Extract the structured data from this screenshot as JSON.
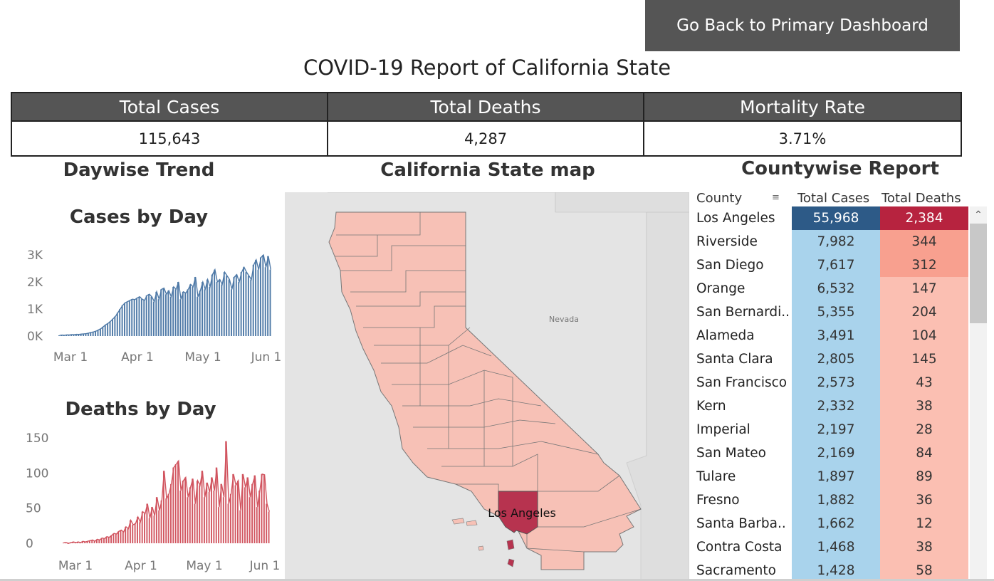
{
  "back_button": "Go Back to Primary Dashboard",
  "title": "COVID-19 Report of California State",
  "kpis": [
    {
      "label": "Total Cases",
      "value": "115,643"
    },
    {
      "label": "Total Deaths",
      "value": "4,287"
    },
    {
      "label": "Mortality Rate",
      "value": "3.71%"
    }
  ],
  "sections": {
    "trend": "Daywise Trend",
    "map": "California State map",
    "county": "Countywise Report"
  },
  "map": {
    "state_label": "Nevada",
    "highlight_label": "Los Angeles",
    "colors": {
      "county_fill": "#f7c1b6",
      "highlight": "#b7334f",
      "background": "#e8e8e8",
      "land": "#dcdcdc"
    }
  },
  "chart_data": [
    {
      "type": "bar",
      "title": "Cases by Day",
      "xlabel": "",
      "ylabel": "",
      "x_ticks": [
        "Mar 1",
        "Apr 1",
        "May 1",
        "Jun 1"
      ],
      "y_ticks": [
        "0K",
        "1K",
        "2K",
        "3K"
      ],
      "ylim": [
        0,
        3300
      ],
      "color": "#4e79a7",
      "values": [
        30,
        40,
        35,
        50,
        45,
        60,
        55,
        70,
        65,
        80,
        90,
        100,
        120,
        150,
        170,
        200,
        250,
        300,
        380,
        460,
        520,
        600,
        700,
        800,
        950,
        1100,
        1250,
        1350,
        1400,
        1450,
        1500,
        1480,
        1550,
        1600,
        1500,
        1450,
        1650,
        1700,
        1600,
        1400,
        1800,
        1500,
        1900,
        1950,
        1700,
        1850,
        1600,
        2000,
        1900,
        2200,
        1500,
        1800,
        1750,
        1900,
        2100,
        2000,
        2400,
        1600,
        1850,
        2200,
        1900,
        2300,
        2000,
        2500,
        2700,
        2200,
        2300,
        2100,
        2600,
        2450,
        2300,
        1900,
        2400,
        2500,
        2200,
        2600,
        2800,
        2600,
        2450,
        2300,
        2900,
        3100,
        2700,
        3200,
        3300,
        2800,
        3250,
        2700
      ],
      "grid": false
    },
    {
      "type": "bar",
      "title": "Deaths by Day",
      "xlabel": "",
      "ylabel": "",
      "x_ticks": [
        "Mar 1",
        "Apr 1",
        "May 1",
        "Jun 1"
      ],
      "y_ticks": [
        "0",
        "50",
        "100",
        "150"
      ],
      "ylim": [
        0,
        160
      ],
      "color": "#d1545f",
      "values": [
        1,
        1,
        0,
        1,
        2,
        1,
        2,
        1,
        3,
        2,
        3,
        4,
        5,
        3,
        6,
        5,
        8,
        7,
        10,
        9,
        12,
        15,
        14,
        18,
        20,
        17,
        25,
        22,
        35,
        28,
        30,
        40,
        32,
        48,
        45,
        60,
        38,
        55,
        42,
        70,
        50,
        65,
        110,
        68,
        75,
        90,
        115,
        120,
        125,
        80,
        95,
        100,
        70,
        85,
        98,
        60,
        95,
        88,
        110,
        70,
        92,
        78,
        100,
        80,
        115,
        55,
        90,
        70,
        155,
        60,
        75,
        105,
        88,
        95,
        50,
        105,
        85,
        100,
        70,
        90,
        103,
        55,
        80,
        105,
        104,
        60,
        48
      ],
      "grid": false
    }
  ],
  "county_table": {
    "headers": [
      "County",
      "Total Cases",
      "Total Deaths"
    ],
    "rows": [
      {
        "county": "Los Angeles",
        "cases": "55,968",
        "deaths": "2,384"
      },
      {
        "county": "Riverside",
        "cases": "7,982",
        "deaths": "344"
      },
      {
        "county": "San Diego",
        "cases": "7,617",
        "deaths": "312"
      },
      {
        "county": "Orange",
        "cases": "6,532",
        "deaths": "147"
      },
      {
        "county": "San Bernardi..",
        "cases": "5,355",
        "deaths": "204"
      },
      {
        "county": "Alameda",
        "cases": "3,491",
        "deaths": "104"
      },
      {
        "county": "Santa Clara",
        "cases": "2,805",
        "deaths": "145"
      },
      {
        "county": "San Francisco",
        "cases": "2,573",
        "deaths": "43"
      },
      {
        "county": "Kern",
        "cases": "2,332",
        "deaths": "38"
      },
      {
        "county": "Imperial",
        "cases": "2,197",
        "deaths": "28"
      },
      {
        "county": "San Mateo",
        "cases": "2,169",
        "deaths": "84"
      },
      {
        "county": "Tulare",
        "cases": "1,897",
        "deaths": "89"
      },
      {
        "county": "Fresno",
        "cases": "1,882",
        "deaths": "36"
      },
      {
        "county": "Santa Barba..",
        "cases": "1,662",
        "deaths": "12"
      },
      {
        "county": "Contra Costa",
        "cases": "1,468",
        "deaths": "38"
      },
      {
        "county": "Sacramento",
        "cases": "1,428",
        "deaths": "58"
      }
    ],
    "colors": {
      "cases_top": "#2d5a87",
      "cases_other": "#a9d3ec",
      "deaths_top": "#b7233f",
      "deaths_high": "#f8a08f",
      "deaths_other": "#fbbfb2"
    }
  }
}
